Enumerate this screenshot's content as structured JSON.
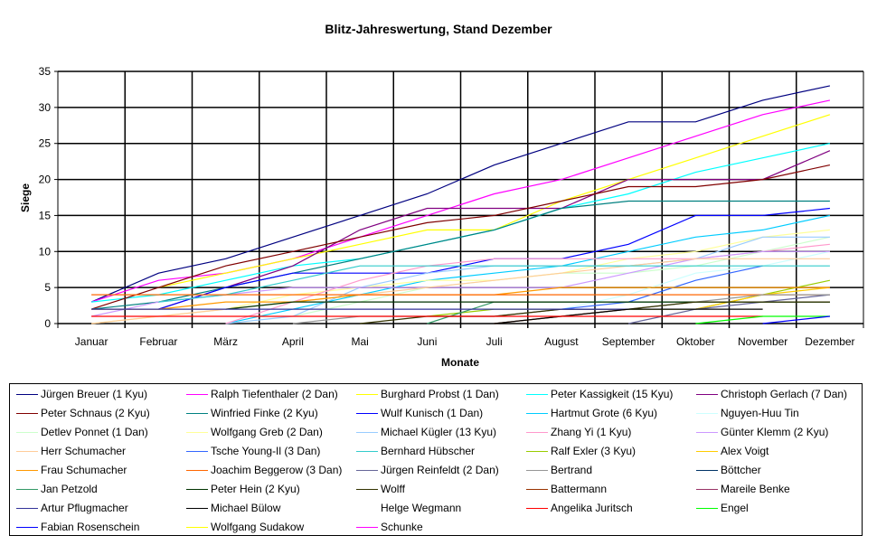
{
  "chart_data": {
    "type": "line",
    "title": "Blitz-Jahreswertung, Stand Dezember",
    "xlabel": "Monate",
    "ylabel": "Siege",
    "ylim": [
      0,
      35
    ],
    "yticks": [
      0,
      5,
      10,
      15,
      20,
      25,
      30,
      35
    ],
    "grid": true,
    "legend_position": "bottom",
    "categories": [
      "Januar",
      "Februar",
      "März",
      "April",
      "Mai",
      "Juni",
      "Juli",
      "August",
      "September",
      "Oktober",
      "November",
      "Dezember"
    ],
    "series": [
      {
        "name": "Jürgen Breuer (1 Kyu)",
        "color": "#000080",
        "values": [
          3,
          7,
          9,
          12,
          15,
          18,
          22,
          25,
          28,
          28,
          31,
          33
        ]
      },
      {
        "name": "Ralph Tiefenthaler (2 Dan)",
        "color": "#FF00FF",
        "values": [
          3,
          6,
          7,
          9,
          12,
          15,
          18,
          20,
          23,
          26,
          29,
          31
        ]
      },
      {
        "name": "Burghard Probst (1 Dan)",
        "color": "#FFFF00",
        "values": [
          null,
          5,
          7,
          9,
          11,
          13,
          13,
          17,
          20,
          23,
          26,
          29
        ]
      },
      {
        "name": "Peter Kassigkeit (15 Kyu)",
        "color": "#00FFFF",
        "values": [
          3,
          4,
          6,
          8,
          9,
          11,
          13,
          16,
          18,
          21,
          23,
          25
        ]
      },
      {
        "name": "Christoph Gerlach (7 Dan)",
        "color": "#800080",
        "values": [
          null,
          2,
          5,
          8,
          13,
          16,
          16,
          16,
          20,
          20,
          20,
          24
        ]
      },
      {
        "name": "Peter Schnaus (2 Kyu)",
        "color": "#800000",
        "values": [
          2,
          5,
          8,
          10,
          12,
          14,
          15,
          17,
          19,
          19,
          20,
          22
        ]
      },
      {
        "name": "Winfried Finke (2 Kyu)",
        "color": "#008080",
        "values": [
          2,
          3,
          5,
          7,
          9,
          11,
          13,
          16,
          17,
          17,
          17,
          17
        ]
      },
      {
        "name": "Wulf Kunisch (1 Dan)",
        "color": "#0000FF",
        "values": [
          null,
          2,
          5,
          7,
          7,
          7,
          9,
          9,
          11,
          15,
          15,
          16
        ]
      },
      {
        "name": "Hartmut Grote (6 Kyu)",
        "color": "#00CCFF",
        "values": [
          null,
          null,
          0,
          2,
          4,
          6,
          7,
          8,
          10,
          12,
          13,
          15
        ]
      },
      {
        "name": "Nguyen-Huu Tin",
        "color": "#CCFFFF",
        "values": [
          null,
          null,
          null,
          null,
          null,
          null,
          null,
          2,
          4,
          7,
          8,
          10
        ]
      },
      {
        "name": "Detlev Ponnet (1 Dan)",
        "color": "#CCFFCC",
        "values": [
          null,
          null,
          null,
          1,
          3,
          5,
          6,
          7,
          7,
          8,
          10,
          12
        ]
      },
      {
        "name": "Wolfgang Greb (2 Dan)",
        "color": "#FFFF99",
        "values": [
          0,
          1,
          2,
          4,
          5,
          6,
          6,
          7,
          9,
          10,
          12,
          13
        ]
      },
      {
        "name": "Michael Kügler (13 Kyu)",
        "color": "#99CCFF",
        "values": [
          null,
          null,
          0,
          1,
          5,
          7,
          8,
          8,
          8,
          9,
          12,
          12
        ]
      },
      {
        "name": "Zhang Yi (1 Kyu)",
        "color": "#FF99CC",
        "values": [
          null,
          null,
          0,
          3,
          6,
          8,
          9,
          9,
          9,
          9,
          10,
          11
        ]
      },
      {
        "name": "Günter Klemm (2 Kyu)",
        "color": "#CC99FF",
        "values": [
          1,
          3,
          4,
          5,
          5,
          5,
          5,
          5,
          7,
          9,
          10,
          10
        ]
      },
      {
        "name": "Herr Schumacher",
        "color": "#FFCC99",
        "values": [
          0,
          1,
          2,
          3,
          4,
          5,
          6,
          7,
          8,
          9,
          9,
          9
        ]
      },
      {
        "name": "Tsche Young-Il (3 Dan)",
        "color": "#3366FF",
        "values": [
          null,
          null,
          null,
          null,
          null,
          null,
          null,
          2,
          3,
          6,
          8,
          null
        ]
      },
      {
        "name": "Bernhard Hübscher",
        "color": "#33CCCC",
        "values": [
          null,
          3,
          4,
          6,
          8,
          8,
          8,
          8,
          8,
          8,
          8,
          8
        ]
      },
      {
        "name": "Ralf Exler (3 Kyu)",
        "color": "#99CC00",
        "values": [
          null,
          null,
          null,
          null,
          null,
          1,
          2,
          2,
          2,
          2,
          4,
          6
        ]
      },
      {
        "name": "Alex Voigt",
        "color": "#FFCC00",
        "values": [
          null,
          null,
          null,
          null,
          null,
          null,
          null,
          null,
          null,
          2,
          4,
          5
        ]
      },
      {
        "name": "Frau Schumacher",
        "color": "#FF9900",
        "values": [
          2,
          2,
          3,
          3,
          4,
          4,
          4,
          5,
          5,
          5,
          5,
          5
        ]
      },
      {
        "name": "Joachim Beggerow (3 Dan)",
        "color": "#FF6600",
        "values": [
          4,
          4,
          4,
          4,
          4,
          4,
          4,
          4,
          4,
          4,
          4,
          4
        ]
      },
      {
        "name": "Jürgen Reinfeldt (2 Dan)",
        "color": "#666699",
        "values": [
          null,
          null,
          null,
          null,
          null,
          null,
          null,
          null,
          0,
          2,
          3,
          4
        ]
      },
      {
        "name": "Bertrand",
        "color": "#969696",
        "values": [
          null,
          null,
          null,
          0,
          1,
          1,
          1,
          2,
          2,
          3,
          4,
          4
        ]
      },
      {
        "name": "Böttcher",
        "color": "#003366",
        "values": [
          null,
          null,
          null,
          null,
          null,
          null,
          null,
          null,
          null,
          null,
          null,
          null
        ]
      },
      {
        "name": "Jan Petzold",
        "color": "#339966",
        "values": [
          null,
          null,
          null,
          null,
          null,
          0,
          3,
          3,
          3,
          3,
          3,
          3
        ]
      },
      {
        "name": "Peter Hein (2 Kyu)",
        "color": "#003300",
        "values": [
          null,
          null,
          2,
          3,
          3,
          3,
          3,
          3,
          3,
          3,
          3,
          3
        ]
      },
      {
        "name": "Wolff",
        "color": "#333300",
        "values": [
          null,
          null,
          null,
          null,
          0,
          1,
          1,
          2,
          2,
          3,
          3,
          3
        ]
      },
      {
        "name": "Battermann",
        "color": "#993300",
        "values": [
          null,
          null,
          null,
          null,
          null,
          null,
          0,
          1,
          2,
          null,
          null,
          null
        ]
      },
      {
        "name": "Mareile Benke",
        "color": "#993366",
        "values": [
          null,
          null,
          null,
          null,
          null,
          null,
          null,
          null,
          null,
          null,
          null,
          null
        ]
      },
      {
        "name": "Artur Pflugmacher",
        "color": "#333399",
        "values": [
          2,
          2,
          2,
          2,
          2,
          2,
          2,
          2,
          2,
          null,
          null,
          null
        ]
      },
      {
        "name": "Michael Bülow",
        "color": "#000000",
        "values": [
          null,
          null,
          null,
          null,
          null,
          null,
          0,
          1,
          2,
          2,
          2,
          null
        ]
      },
      {
        "name": "Helge Wegmann",
        "color": "#FFFFFF",
        "values": [
          null,
          null,
          null,
          null,
          null,
          null,
          null,
          null,
          null,
          null,
          null,
          null
        ]
      },
      {
        "name": "Angelika Juritsch",
        "color": "#FF0000",
        "values": [
          1,
          1,
          1,
          1,
          1,
          1,
          1,
          1,
          1,
          1,
          1,
          null
        ]
      },
      {
        "name": "Engel",
        "color": "#00FF00",
        "values": [
          null,
          null,
          null,
          null,
          null,
          null,
          null,
          null,
          null,
          0,
          1,
          1
        ]
      },
      {
        "name": "Fabian Rosenschein",
        "color": "#0000FF",
        "values": [
          null,
          null,
          null,
          null,
          null,
          null,
          null,
          null,
          null,
          null,
          0,
          1
        ]
      },
      {
        "name": "Wolfgang Sudakow",
        "color": "#FFFF00",
        "values": [
          null,
          null,
          null,
          null,
          null,
          null,
          null,
          null,
          null,
          null,
          null,
          null
        ]
      },
      {
        "name": "Schunke",
        "color": "#FF00FF",
        "values": [
          null,
          null,
          null,
          null,
          null,
          null,
          null,
          null,
          null,
          null,
          null,
          null
        ]
      }
    ]
  }
}
